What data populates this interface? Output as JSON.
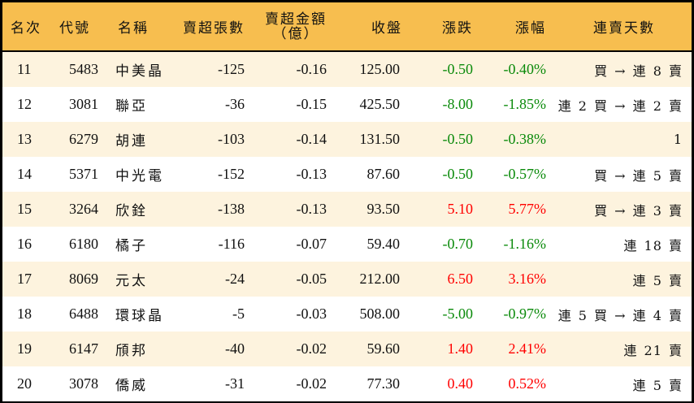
{
  "colors": {
    "header_bg": "#F7BE4F",
    "row_alt_bg": "#FDF3DE",
    "row_bg": "#FFFFFF",
    "up": "#FF0000",
    "down": "#0A8A0A",
    "border": "#000000"
  },
  "header": {
    "rank": "名次",
    "code": "代號",
    "name": "名稱",
    "net_sell_volume": "賣超張數",
    "net_sell_amount_line1": "賣超金額",
    "net_sell_amount_line2": "（億）",
    "close": "收盤",
    "change": "漲跌",
    "change_pct": "漲幅",
    "streak": "連賣天數"
  },
  "rows": [
    {
      "rank": "11",
      "code": "5483",
      "name": "中美晶",
      "volume": "-125",
      "amount": "-0.16",
      "close": "125.00",
      "change": "-0.50",
      "pct": "-0.40%",
      "dir": "down",
      "streak": "買 → 連 8 賣"
    },
    {
      "rank": "12",
      "code": "3081",
      "name": "聯亞",
      "volume": "-36",
      "amount": "-0.15",
      "close": "425.50",
      "change": "-8.00",
      "pct": "-1.85%",
      "dir": "down",
      "streak": "連 2 買 → 連 2 賣"
    },
    {
      "rank": "13",
      "code": "6279",
      "name": "胡連",
      "volume": "-103",
      "amount": "-0.14",
      "close": "131.50",
      "change": "-0.50",
      "pct": "-0.38%",
      "dir": "down",
      "streak": "1"
    },
    {
      "rank": "14",
      "code": "5371",
      "name": "中光電",
      "volume": "-152",
      "amount": "-0.13",
      "close": "87.60",
      "change": "-0.50",
      "pct": "-0.57%",
      "dir": "down",
      "streak": "買 → 連 5 賣"
    },
    {
      "rank": "15",
      "code": "3264",
      "name": "欣銓",
      "volume": "-138",
      "amount": "-0.13",
      "close": "93.50",
      "change": "5.10",
      "pct": "5.77%",
      "dir": "up",
      "streak": "買 → 連 3 賣"
    },
    {
      "rank": "16",
      "code": "6180",
      "name": "橘子",
      "volume": "-116",
      "amount": "-0.07",
      "close": "59.40",
      "change": "-0.70",
      "pct": "-1.16%",
      "dir": "down",
      "streak": "連 18 賣"
    },
    {
      "rank": "17",
      "code": "8069",
      "name": "元太",
      "volume": "-24",
      "amount": "-0.05",
      "close": "212.00",
      "change": "6.50",
      "pct": "3.16%",
      "dir": "up",
      "streak": "連 5 賣"
    },
    {
      "rank": "18",
      "code": "6488",
      "name": "環球晶",
      "volume": "-5",
      "amount": "-0.03",
      "close": "508.00",
      "change": "-5.00",
      "pct": "-0.97%",
      "dir": "down",
      "streak": "連 5 買 → 連 4 賣"
    },
    {
      "rank": "19",
      "code": "6147",
      "name": "頎邦",
      "volume": "-40",
      "amount": "-0.02",
      "close": "59.60",
      "change": "1.40",
      "pct": "2.41%",
      "dir": "up",
      "streak": "連 21 賣"
    },
    {
      "rank": "20",
      "code": "3078",
      "name": "僑威",
      "volume": "-31",
      "amount": "-0.02",
      "close": "77.30",
      "change": "0.40",
      "pct": "0.52%",
      "dir": "up",
      "streak": "連 5 賣"
    }
  ]
}
